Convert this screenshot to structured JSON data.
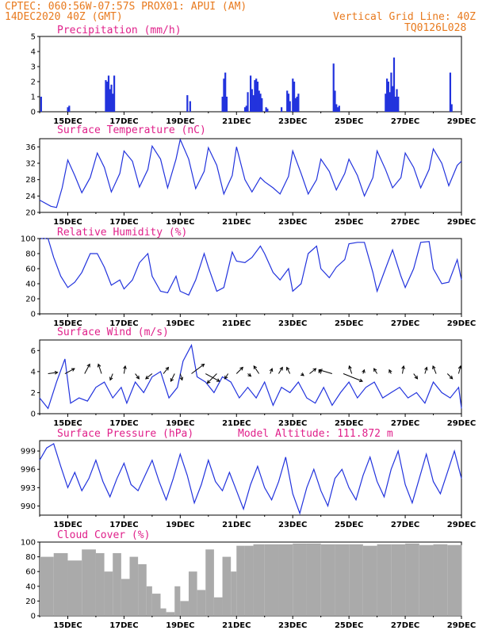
{
  "header": {
    "line1_left": "CPTEC:   060:56W-07:57S   PROX01: APUI (AM)",
    "line2_left": "14DEC2020 40Z (GMT)",
    "line2_right": "Vertical Grid Line: 40Z",
    "line3_right": "TQ0126L028"
  },
  "x_ticks": [
    "15DEC",
    "17DEC",
    "19DEC",
    "21DEC",
    "23DEC",
    "25DEC",
    "27DEC",
    "29DEC"
  ],
  "colors": {
    "line": "#2233dd",
    "title": "#e0208a",
    "header": "#e87a1e",
    "cloud": "#aaaaaa",
    "wind_arrow": "#000000"
  },
  "chart_data": [
    {
      "type": "bar",
      "title": "Precipitation (mm/h)",
      "ylim": [
        0,
        5
      ],
      "yticks": [
        "0",
        "1",
        "2",
        "3",
        "4",
        "5"
      ],
      "x_range_days": [
        14,
        29
      ],
      "x": [
        14.05,
        15.0,
        15.05,
        16.35,
        16.4,
        16.45,
        16.5,
        16.55,
        16.6,
        16.65,
        19.25,
        19.35,
        20.5,
        20.55,
        20.6,
        20.65,
        21.3,
        21.35,
        21.4,
        21.5,
        21.55,
        21.6,
        21.65,
        21.7,
        21.75,
        21.8,
        21.85,
        21.9,
        22.05,
        22.1,
        22.6,
        22.8,
        22.85,
        22.9,
        23.0,
        23.05,
        23.1,
        23.15,
        23.2,
        24.45,
        24.5,
        24.55,
        24.6,
        24.65,
        26.3,
        26.35,
        26.4,
        26.45,
        26.5,
        26.55,
        26.6,
        26.65,
        26.7,
        26.75,
        28.6,
        28.65
      ],
      "values": [
        1.0,
        0.3,
        0.4,
        2.1,
        2.0,
        2.4,
        1.5,
        1.8,
        1.2,
        2.4,
        1.1,
        0.7,
        1.0,
        2.2,
        2.6,
        1.0,
        0.3,
        0.4,
        1.3,
        2.4,
        1.5,
        1.1,
        2.1,
        2.2,
        2.0,
        1.4,
        1.2,
        0.9,
        0.3,
        0.2,
        0.3,
        1.4,
        1.2,
        0.7,
        2.2,
        2.0,
        0.9,
        1.0,
        1.2,
        3.2,
        1.4,
        0.5,
        0.3,
        0.4,
        1.2,
        2.2,
        2.0,
        1.3,
        2.6,
        1.7,
        3.6,
        1.0,
        1.5,
        1.0,
        2.6,
        0.5
      ]
    },
    {
      "type": "line",
      "title": "Surface Temperature (nC)",
      "ylim": [
        20,
        38
      ],
      "yticks": [
        "20",
        "24",
        "28",
        "32",
        "36"
      ],
      "x_range_days": [
        14,
        29
      ],
      "x": [
        14.0,
        14.4,
        14.6,
        14.8,
        15.0,
        15.25,
        15.5,
        15.8,
        16.05,
        16.3,
        16.55,
        16.85,
        17.0,
        17.3,
        17.55,
        17.85,
        18.0,
        18.3,
        18.55,
        18.85,
        19.0,
        19.3,
        19.55,
        19.85,
        20.0,
        20.3,
        20.55,
        20.85,
        21.0,
        21.3,
        21.55,
        21.85,
        22.0,
        22.3,
        22.55,
        22.85,
        23.0,
        23.3,
        23.55,
        23.85,
        24.0,
        24.3,
        24.55,
        24.85,
        25.0,
        25.3,
        25.55,
        25.85,
        26.0,
        26.3,
        26.55,
        26.85,
        27.0,
        27.3,
        27.55,
        27.85,
        28.0,
        28.3,
        28.55,
        28.85,
        29.0
      ],
      "values": [
        23.0,
        21.5,
        21.2,
        26.0,
        32.8,
        29.0,
        24.8,
        28.5,
        34.5,
        31.0,
        25.0,
        29.5,
        35.0,
        32.5,
        26.2,
        30.5,
        36.2,
        33.0,
        26.0,
        33.0,
        37.8,
        33.0,
        25.8,
        30.0,
        35.8,
        31.5,
        24.5,
        29.0,
        36.0,
        28.0,
        25.0,
        28.5,
        27.5,
        26.0,
        24.5,
        28.8,
        35.0,
        29.5,
        24.5,
        28.0,
        33.0,
        30.0,
        25.5,
        29.5,
        33.0,
        29.0,
        24.0,
        28.5,
        35.0,
        30.5,
        26.0,
        28.5,
        34.5,
        31.0,
        26.0,
        30.5,
        35.5,
        32.0,
        26.5,
        31.5,
        32.5
      ]
    },
    {
      "type": "line",
      "title": "Relative Humidity (%)",
      "ylim": [
        0,
        100
      ],
      "yticks": [
        "0",
        "20",
        "40",
        "60",
        "80",
        "100"
      ],
      "x_range_days": [
        14,
        29
      ],
      "x": [
        14.0,
        14.3,
        14.5,
        14.75,
        15.0,
        15.25,
        15.5,
        15.8,
        16.05,
        16.3,
        16.55,
        16.85,
        17.0,
        17.3,
        17.55,
        17.85,
        18.0,
        18.3,
        18.55,
        18.85,
        19.0,
        19.3,
        19.55,
        19.85,
        20.0,
        20.3,
        20.55,
        20.85,
        21.0,
        21.3,
        21.55,
        21.85,
        22.0,
        22.3,
        22.55,
        22.85,
        23.0,
        23.3,
        23.55,
        23.85,
        24.0,
        24.3,
        24.55,
        24.85,
        25.0,
        25.3,
        25.55,
        25.85,
        26.0,
        26.3,
        26.55,
        26.85,
        27.0,
        27.3,
        27.55,
        27.85,
        28.0,
        28.3,
        28.55,
        28.85,
        29.0
      ],
      "values": [
        100,
        100,
        75,
        50,
        35,
        42,
        55,
        80,
        80,
        62,
        38,
        45,
        33,
        45,
        68,
        80,
        50,
        30,
        28,
        50,
        30,
        25,
        45,
        80,
        62,
        30,
        35,
        82,
        70,
        68,
        75,
        90,
        80,
        55,
        45,
        60,
        30,
        40,
        80,
        90,
        60,
        48,
        62,
        72,
        93,
        95,
        95,
        55,
        30,
        60,
        85,
        50,
        35,
        60,
        95,
        96,
        60,
        40,
        42,
        72,
        45
      ]
    },
    {
      "type": "line",
      "title": "Surface Wind (m/s)",
      "ylim": [
        0,
        7
      ],
      "yticks": [
        "0",
        "2",
        "4",
        "6"
      ],
      "x_range_days": [
        14,
        29
      ],
      "x": [
        14.0,
        14.3,
        14.6,
        14.9,
        15.1,
        15.4,
        15.7,
        16.0,
        16.3,
        16.6,
        16.9,
        17.1,
        17.4,
        17.7,
        18.0,
        18.3,
        18.6,
        18.9,
        19.1,
        19.4,
        19.6,
        19.9,
        20.2,
        20.5,
        20.8,
        21.1,
        21.4,
        21.7,
        22.0,
        22.3,
        22.6,
        22.9,
        23.2,
        23.5,
        23.8,
        24.1,
        24.4,
        24.7,
        25.0,
        25.3,
        25.6,
        25.9,
        26.2,
        26.5,
        26.8,
        27.1,
        27.4,
        27.7,
        28.0,
        28.3,
        28.6,
        28.9,
        29.0
      ],
      "values": [
        1.5,
        0.5,
        3.0,
        5.2,
        1.0,
        1.5,
        1.2,
        2.5,
        3.0,
        1.5,
        2.5,
        1.0,
        3.0,
        2.0,
        3.5,
        4.0,
        1.5,
        2.5,
        5.0,
        6.5,
        3.5,
        3.0,
        2.0,
        3.5,
        3.0,
        1.5,
        2.5,
        1.5,
        3.0,
        0.8,
        2.5,
        2.0,
        3.0,
        1.5,
        1.0,
        2.5,
        0.8,
        2.0,
        3.0,
        1.5,
        2.5,
        3.0,
        1.5,
        2.0,
        2.5,
        1.5,
        2.0,
        1.0,
        3.0,
        2.0,
        1.5,
        2.5,
        0.5
      ]
    },
    {
      "type": "line",
      "title": "Surface Pressure (hPa)",
      "annotation": "Model Altitude: 111.872 m",
      "ylim": [
        988.5,
        1000.7
      ],
      "yticks": [
        "990",
        "993",
        "996",
        "999"
      ],
      "x_range_days": [
        14,
        29
      ],
      "x": [
        14.0,
        14.25,
        14.5,
        14.75,
        15.0,
        15.25,
        15.5,
        15.75,
        16.0,
        16.25,
        16.5,
        16.75,
        17.0,
        17.25,
        17.5,
        17.75,
        18.0,
        18.25,
        18.5,
        18.75,
        19.0,
        19.25,
        19.5,
        19.75,
        20.0,
        20.25,
        20.5,
        20.75,
        21.0,
        21.25,
        21.5,
        21.75,
        22.0,
        22.25,
        22.5,
        22.75,
        23.0,
        23.25,
        23.5,
        23.75,
        24.0,
        24.25,
        24.5,
        24.75,
        25.0,
        25.25,
        25.5,
        25.75,
        26.0,
        26.25,
        26.5,
        26.75,
        27.0,
        27.25,
        27.5,
        27.75,
        28.0,
        28.25,
        28.5,
        28.75,
        29.0
      ],
      "values": [
        997.5,
        999.5,
        1000.2,
        996.5,
        993.0,
        995.5,
        992.5,
        994.5,
        997.5,
        994.0,
        991.5,
        994.5,
        997.0,
        993.5,
        992.5,
        995.0,
        997.5,
        994.0,
        991.0,
        994.5,
        998.5,
        995.0,
        990.5,
        993.5,
        997.5,
        994.0,
        992.5,
        995.5,
        992.5,
        989.5,
        993.5,
        996.5,
        993.0,
        991.0,
        994.0,
        998.0,
        992.0,
        988.8,
        993.0,
        996.0,
        992.5,
        990.0,
        994.5,
        996.0,
        993.0,
        991.0,
        995.0,
        998.0,
        994.0,
        991.5,
        996.0,
        999.0,
        993.5,
        990.5,
        994.5,
        998.5,
        994.0,
        992.0,
        995.5,
        999.0,
        994.5
      ]
    },
    {
      "type": "area",
      "title": "Cloud Cover (%)",
      "ylim": [
        0,
        100
      ],
      "yticks": [
        "0",
        "20",
        "40",
        "60",
        "80",
        "100"
      ],
      "x_range_days": [
        14,
        29
      ],
      "x": [
        14.0,
        14.5,
        15.0,
        15.5,
        16.0,
        16.3,
        16.6,
        16.9,
        17.2,
        17.5,
        17.8,
        18.0,
        18.3,
        18.5,
        18.8,
        19.0,
        19.3,
        19.6,
        19.9,
        20.2,
        20.5,
        20.8,
        21.0,
        21.3,
        21.6,
        22.0,
        22.5,
        23.0,
        23.5,
        24.0,
        24.5,
        25.0,
        25.5,
        26.0,
        26.5,
        27.0,
        27.5,
        28.0,
        28.5,
        29.0
      ],
      "values": [
        80,
        85,
        75,
        90,
        85,
        60,
        85,
        50,
        80,
        70,
        40,
        30,
        10,
        5,
        40,
        20,
        60,
        35,
        90,
        25,
        80,
        60,
        95,
        95,
        97,
        97,
        97,
        98,
        98,
        97,
        97,
        97,
        95,
        97,
        97,
        98,
        96,
        97,
        96,
        96
      ]
    }
  ],
  "wind_arrows": {
    "x": [
      14.3,
      14.9,
      15.6,
      16.2,
      16.6,
      17.0,
      17.4,
      18.0,
      18.4,
      18.8,
      19.0,
      19.4,
      19.9,
      20.3,
      20.7,
      21.0,
      21.4,
      21.8,
      22.2,
      22.5,
      22.9,
      23.3,
      23.6,
      24.0,
      24.4,
      24.8,
      25.1,
      25.5,
      26.0,
      26.5,
      26.9,
      27.3,
      27.7,
      28.1,
      28.5,
      28.9
    ],
    "u": [
      1.5,
      1.5,
      0.8,
      -0.5,
      -0.4,
      0.2,
      0.6,
      -1.0,
      0.8,
      -0.6,
      0.3,
      2.0,
      2.2,
      -1.5,
      -0.5,
      1.0,
      0.5,
      -0.8,
      0.3,
      0.6,
      -0.5,
      0.4,
      1.0,
      -0.3,
      -2.0,
      3.0,
      -0.4,
      0.2,
      -0.5,
      -0.3,
      0.2,
      0.6,
      0.3,
      -0.5,
      0.8,
      0.3
    ],
    "v": [
      0.2,
      0.8,
      1.5,
      1.5,
      -1.0,
      1.2,
      -0.8,
      -0.8,
      1.0,
      -1.2,
      -1.0,
      1.5,
      -1.2,
      -1.5,
      -0.8,
      1.0,
      -0.4,
      1.2,
      0.8,
      1.0,
      1.0,
      -0.3,
      0.8,
      0.6,
      0.6,
      -1.2,
      1.2,
      0.6,
      0.8,
      0.6,
      1.2,
      -0.8,
      1.0,
      1.2,
      -0.8,
      1.2
    ]
  }
}
